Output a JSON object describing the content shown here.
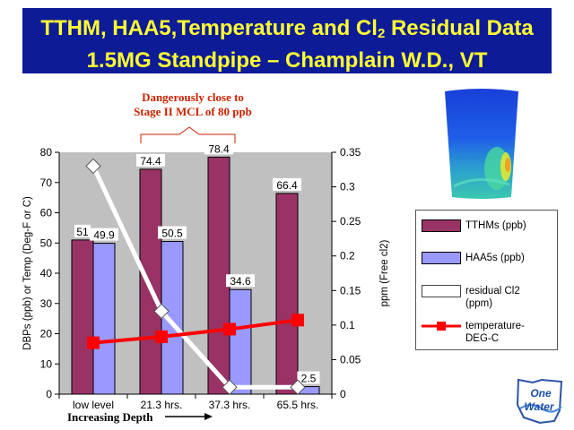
{
  "title": {
    "line1_prefix": "TTHM, HAA5,Temperature and Cl",
    "line1_sub": "2",
    "line1_suffix": " Residual Data",
    "line2": "1.5MG Standpipe – Champlain W.D., VT"
  },
  "annotation": {
    "line1": "Dangerously close to",
    "line2": "Stage II MCL of 80 ppb"
  },
  "depth_label": "Increasing Depth",
  "logo": {
    "line1": "One",
    "line2": "Water"
  },
  "colors": {
    "tthm": "#993366",
    "haa5": "#9999ff",
    "residual": "#ffffff",
    "temperature": "#ff0000",
    "plot_bg": "#c0c0c0",
    "title_bg": "#0d1b96",
    "title_text": "#ffff33",
    "annotation": "#cc2200"
  },
  "chart_data": {
    "type": "bar",
    "categories": [
      "low level",
      "21.3 hrs.",
      "37.3 hrs.",
      "65.5 hrs."
    ],
    "series": [
      {
        "name": "TTHMs (ppb)",
        "type": "bar",
        "axis": "left",
        "values": [
          51,
          74.4,
          78.4,
          66.4
        ],
        "labels": [
          "51",
          "74.4",
          "78.4",
          "66.4"
        ]
      },
      {
        "name": "HAA5s (ppb)",
        "type": "bar",
        "axis": "left",
        "values": [
          49.9,
          50.5,
          34.6,
          2.5
        ],
        "labels": [
          "49.9",
          "50.5",
          "34.6",
          "2.5"
        ]
      },
      {
        "name": "residual Cl2 (ppm)",
        "type": "line",
        "axis": "right",
        "values": [
          0.33,
          0.12,
          0.01,
          0.01
        ]
      },
      {
        "name": "temperature-DEG-C",
        "type": "line",
        "axis": "left",
        "values": [
          17,
          19,
          21.5,
          24.5
        ]
      }
    ],
    "ylabel": "DBPs (ppb) or Temp (Deg-F or C)",
    "y2label": "ppm (Free cl2)",
    "ylim": [
      0,
      80
    ],
    "y2lim": [
      0,
      0.35
    ],
    "yticks": [
      "0",
      "10",
      "20",
      "30",
      "40",
      "50",
      "60",
      "70",
      "80"
    ],
    "y2ticks": [
      "0",
      "0.05",
      "0.1",
      "0.15",
      "0.2",
      "0.25",
      "0.3",
      "0.35"
    ],
    "legend_position": "right",
    "grid": false
  }
}
